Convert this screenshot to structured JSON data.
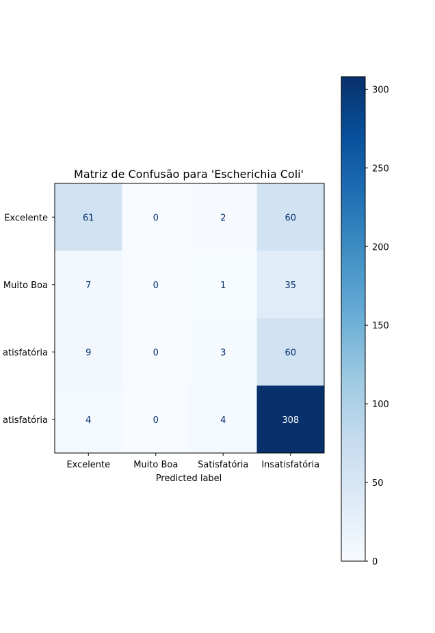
{
  "chart_data": {
    "type": "heatmap",
    "title": "Matriz de Confusão para 'Escherichia Coli'",
    "xlabel": "Predicted label",
    "ylabel": "",
    "x_categories": [
      "Excelente",
      "Muito Boa",
      "Satisfatória",
      "Insatisfatória"
    ],
    "y_categories": [
      "Excelente",
      "Muito Boa",
      "Satisfatória",
      "Insatisfatória"
    ],
    "y_tick_labels_visible": [
      "Excelente",
      "Muito Boa",
      "atisfatória",
      "atisfatória"
    ],
    "matrix": [
      [
        61,
        0,
        2,
        60
      ],
      [
        7,
        0,
        1,
        35
      ],
      [
        9,
        0,
        3,
        60
      ],
      [
        4,
        0,
        4,
        308
      ]
    ],
    "colormap": "Blues",
    "colorbar": {
      "min": 0,
      "max": 308,
      "ticks": [
        0,
        50,
        100,
        150,
        200,
        250,
        300
      ]
    },
    "text_color_light": "#ffffff",
    "text_color_dark": "#08306b",
    "grid": false
  }
}
